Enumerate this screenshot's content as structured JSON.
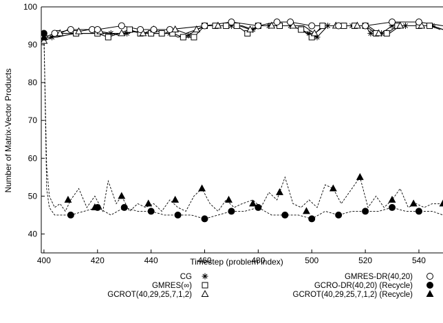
{
  "chart_data": {
    "type": "line",
    "title": "",
    "xlabel": "Timestep (problem index)",
    "ylabel": "Number of Matrix-Vector Products",
    "xlim": [
      399,
      549
    ],
    "ylim": [
      35,
      100
    ],
    "xticks": [
      400,
      420,
      440,
      460,
      480,
      500,
      520,
      540
    ],
    "yticks": [
      40,
      50,
      60,
      70,
      80,
      90,
      100
    ],
    "grid": false,
    "legend_position": "bottom",
    "series": [
      {
        "name": "CG",
        "marker": "asterisk",
        "line": "solid",
        "x": [
          400,
          401,
          402,
          403,
          404,
          405,
          408,
          412,
          420,
          423,
          425,
          428,
          431,
          434,
          440,
          444,
          447,
          450,
          454,
          457,
          460,
          465,
          470,
          474,
          478,
          481,
          484,
          488,
          492,
          496,
          499,
          502,
          506,
          510,
          515,
          520,
          522,
          526,
          530,
          535,
          540,
          545,
          549
        ],
        "y": [
          93,
          92,
          92,
          92,
          92,
          92,
          92.5,
          93,
          93,
          93,
          93,
          92.5,
          93,
          93.5,
          93,
          93,
          93,
          92,
          92.5,
          94,
          95,
          95,
          95,
          95,
          94,
          95,
          95,
          95,
          95,
          94,
          93,
          92,
          95,
          95,
          95,
          95,
          93,
          93,
          95,
          95,
          95,
          95,
          94
        ]
      },
      {
        "name": "GMRES(∞)",
        "marker": "square",
        "line": "solid",
        "x": [
          400,
          402,
          405,
          408,
          412,
          416,
          420,
          424,
          428,
          432,
          436,
          440,
          444,
          448,
          452,
          456,
          460,
          464,
          468,
          472,
          476,
          480,
          484,
          488,
          492,
          496,
          500,
          504,
          508,
          512,
          516,
          520,
          524,
          528,
          532,
          536,
          540,
          544,
          548
        ],
        "y": [
          92,
          92,
          93,
          93,
          93,
          93,
          93,
          92,
          93,
          94,
          93,
          93,
          93,
          93,
          92,
          92,
          95,
          95,
          95,
          95,
          93,
          95,
          95,
          95,
          95,
          94,
          92,
          95,
          95,
          95,
          95,
          95,
          93,
          93,
          95,
          95,
          95,
          95,
          94
        ]
      },
      {
        "name": "GCROT(40,29,25,7,1,2)",
        "marker": "triangle-open",
        "line": "solid",
        "x": [
          400,
          403,
          406,
          409,
          413,
          417,
          421,
          425,
          429,
          433,
          437,
          441,
          445,
          449,
          453,
          457,
          461,
          465,
          469,
          473,
          477,
          481,
          485,
          489,
          493,
          497,
          501,
          505,
          509,
          513,
          517,
          521,
          525,
          529,
          533,
          537,
          541,
          545,
          549
        ],
        "y": [
          91,
          92,
          93,
          94,
          93.5,
          94,
          93.5,
          93,
          93,
          93.5,
          93,
          94,
          93,
          94,
          93,
          94,
          95,
          95,
          95,
          95,
          94,
          95,
          95,
          95,
          95,
          95,
          93,
          95,
          95,
          95,
          95,
          95,
          93,
          93,
          95,
          95,
          95,
          95,
          94
        ]
      },
      {
        "name": "GMRES-DR(40,20)",
        "marker": "circle-open",
        "line": "solid",
        "x": [
          400,
          404,
          410,
          418,
          420,
          429,
          436,
          441,
          447,
          460,
          470,
          480,
          487,
          492,
          500,
          510,
          520,
          530,
          540,
          549
        ],
        "y": [
          92,
          93,
          94,
          94,
          94,
          95,
          94,
          94,
          94,
          95,
          96,
          95,
          96,
          96,
          95,
          95,
          95,
          96,
          96,
          95
        ]
      },
      {
        "name": "GCRO-DR(40,20) (Recycle)",
        "marker": "circle-filled",
        "line": "dashed",
        "x": [
          400,
          401,
          402,
          404,
          406,
          410,
          415,
          420,
          425,
          430,
          435,
          440,
          445,
          450,
          455,
          460,
          465,
          470,
          475,
          480,
          485,
          490,
          495,
          500,
          505,
          510,
          515,
          520,
          525,
          530,
          535,
          540,
          545,
          549
        ],
        "y": [
          93,
          52,
          47,
          45,
          45,
          45,
          46,
          47,
          45,
          47,
          46,
          46,
          45,
          45,
          45,
          44,
          45,
          46,
          46,
          47,
          45,
          45,
          45,
          44,
          46,
          45,
          46,
          46,
          46,
          47,
          46,
          46,
          46,
          45
        ]
      },
      {
        "name": "GCROT(40,29,25,7,1,2) (Recycle)",
        "marker": "triangle-filled",
        "line": "dashed",
        "x": [
          400,
          401,
          402,
          404,
          406,
          408,
          410,
          413,
          416,
          419,
          422,
          424,
          427,
          429,
          432,
          435,
          438,
          441,
          444,
          447,
          450,
          453,
          456,
          459,
          462,
          465,
          468,
          471,
          474,
          478,
          481,
          484,
          487,
          490,
          493,
          496,
          499,
          502,
          505,
          508,
          511,
          514,
          518,
          521,
          524,
          527,
          530,
          533,
          536,
          539,
          542,
          545,
          549
        ],
        "y": [
          92,
          58,
          50,
          47,
          48,
          46,
          49,
          52,
          47,
          50,
          46,
          54,
          48,
          50,
          46,
          48,
          47,
          48,
          46,
          49,
          47,
          46,
          50,
          52,
          48,
          46,
          49,
          47,
          48,
          49,
          47,
          51,
          49,
          55,
          48,
          47,
          49,
          47,
          53,
          52,
          48,
          51,
          55,
          47,
          50,
          47,
          49,
          52,
          47,
          48,
          47,
          48,
          48
        ]
      }
    ],
    "markers": {
      "CG": [
        [
          400,
          93
        ],
        [
          403,
          92
        ],
        [
          412,
          93
        ],
        [
          420,
          93
        ],
        [
          425,
          93
        ],
        [
          431,
          93
        ],
        [
          440,
          93
        ],
        [
          447,
          93
        ],
        [
          454,
          92.5
        ],
        [
          460,
          95
        ],
        [
          465,
          95
        ],
        [
          470,
          95
        ],
        [
          478,
          94
        ],
        [
          484,
          95
        ],
        [
          488,
          95
        ],
        [
          492,
          95
        ],
        [
          496,
          94
        ],
        [
          499,
          93
        ],
        [
          502,
          92
        ],
        [
          506,
          95
        ],
        [
          510,
          95
        ],
        [
          515,
          95
        ],
        [
          522,
          93
        ],
        [
          526,
          93
        ],
        [
          530,
          95
        ],
        [
          535,
          95
        ],
        [
          540,
          95
        ],
        [
          545,
          95
        ]
      ],
      "GMRES(∞)": [
        [
          400,
          92
        ],
        [
          405,
          93
        ],
        [
          412,
          93
        ],
        [
          420,
          93
        ],
        [
          424,
          92
        ],
        [
          432,
          94
        ],
        [
          436,
          93
        ],
        [
          440,
          93
        ],
        [
          444,
          93
        ],
        [
          448,
          93
        ],
        [
          452,
          92
        ],
        [
          456,
          92
        ],
        [
          460,
          95
        ],
        [
          464,
          95
        ],
        [
          468,
          95
        ],
        [
          472,
          95
        ],
        [
          476,
          93
        ],
        [
          480,
          95
        ],
        [
          488,
          95
        ],
        [
          496,
          94
        ],
        [
          500,
          92
        ],
        [
          504,
          95
        ],
        [
          512,
          95
        ],
        [
          516,
          95
        ],
        [
          520,
          95
        ],
        [
          524,
          93
        ],
        [
          528,
          93
        ],
        [
          532,
          95
        ],
        [
          540,
          95
        ],
        [
          544,
          95
        ]
      ],
      "GCROT(40,29,25,7,1,2)": [
        [
          400,
          91
        ],
        [
          406,
          93
        ],
        [
          413,
          93.5
        ],
        [
          421,
          93.5
        ],
        [
          429,
          93
        ],
        [
          437,
          93
        ],
        [
          441,
          94
        ],
        [
          449,
          94
        ],
        [
          457,
          94
        ],
        [
          465,
          95
        ],
        [
          477,
          94
        ],
        [
          485,
          95
        ],
        [
          493,
          95
        ],
        [
          501,
          93
        ],
        [
          509,
          95
        ],
        [
          517,
          95
        ],
        [
          525,
          93
        ],
        [
          533,
          95
        ],
        [
          541,
          95
        ]
      ],
      "GMRES-DR(40,20)": [
        [
          400,
          92
        ],
        [
          404,
          93
        ],
        [
          410,
          94
        ],
        [
          418,
          94
        ],
        [
          420,
          94
        ],
        [
          429,
          95
        ],
        [
          436,
          94
        ],
        [
          441,
          94
        ],
        [
          447,
          94
        ],
        [
          460,
          95
        ],
        [
          470,
          96
        ],
        [
          480,
          95
        ],
        [
          487,
          96
        ],
        [
          492,
          96
        ],
        [
          500,
          95
        ],
        [
          510,
          95
        ],
        [
          520,
          95
        ],
        [
          530,
          96
        ],
        [
          540,
          96
        ]
      ],
      "GCRO-DR(40,20) (Recycle)": [
        [
          400,
          93
        ],
        [
          410,
          45
        ],
        [
          420,
          47
        ],
        [
          430,
          47
        ],
        [
          440,
          46
        ],
        [
          450,
          45
        ],
        [
          460,
          44
        ],
        [
          470,
          46
        ],
        [
          480,
          47
        ],
        [
          490,
          45
        ],
        [
          500,
          44
        ],
        [
          510,
          45
        ],
        [
          520,
          46
        ],
        [
          530,
          47
        ],
        [
          540,
          46
        ]
      ],
      "GCROT(40,29,25,7,1,2) (Recycle)": [
        [
          400,
          92
        ],
        [
          409,
          49
        ],
        [
          419,
          47
        ],
        [
          429,
          50
        ],
        [
          439,
          48
        ],
        [
          449,
          49
        ],
        [
          459,
          52
        ],
        [
          469,
          49
        ],
        [
          478,
          48
        ],
        [
          488,
          51
        ],
        [
          498,
          46
        ],
        [
          508,
          52
        ],
        [
          518,
          55
        ],
        [
          530,
          49
        ],
        [
          538,
          48
        ],
        [
          549,
          48
        ]
      ]
    }
  }
}
